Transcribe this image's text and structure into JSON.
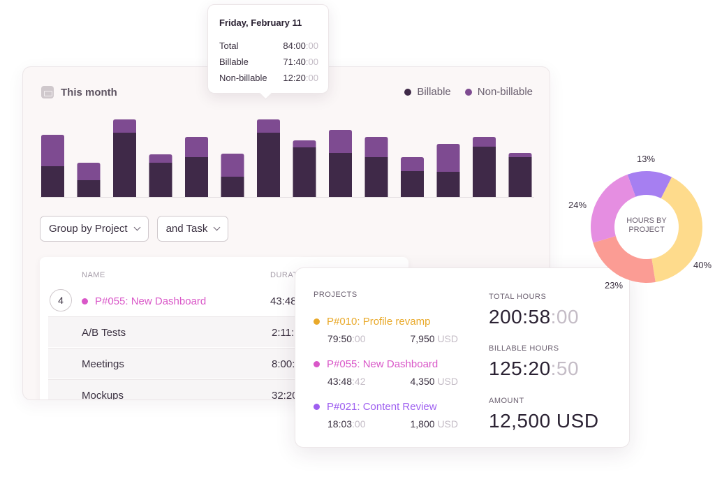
{
  "main_card": {
    "title": "This month",
    "legend": [
      {
        "label": "Billable",
        "color": "#3f2948"
      },
      {
        "label": "Non-billable",
        "color": "#7e4b91"
      }
    ]
  },
  "chart_data": {
    "type": "bar",
    "stacked": true,
    "series": [
      {
        "name": "Billable",
        "color": "#3f2948",
        "values": [
          44,
          24,
          92,
          49,
          57,
          29,
          92,
          71,
          63,
          57,
          37,
          36,
          72,
          57
        ]
      },
      {
        "name": "Non-billable",
        "color": "#7e4b91",
        "values": [
          45,
          25,
          19,
          12,
          29,
          33,
          19,
          10,
          33,
          29,
          20,
          40,
          14,
          6
        ]
      }
    ],
    "ylim": [
      0,
      115
    ],
    "grid": false,
    "legend_position": "top-right"
  },
  "tooltip": {
    "title": "Friday, February 11",
    "rows": [
      {
        "label": "Total",
        "value": "84:00",
        "value_muted": ":00"
      },
      {
        "label": "Billable",
        "value": "71:40",
        "value_muted": ":00"
      },
      {
        "label": "Non-billable",
        "value": "12:20",
        "value_muted": ":00"
      }
    ]
  },
  "filters": {
    "group_by": "Group by Project",
    "and_task": "and Task"
  },
  "table": {
    "headers": {
      "name": "NAME",
      "duration": "DURAT"
    },
    "project": {
      "count": "4",
      "name": "P#055: New Dashboard",
      "color": "#d957c8",
      "duration": "43:48"
    },
    "tasks": [
      {
        "name": "A/B Tests",
        "duration": "2:11:"
      },
      {
        "name": "Meetings",
        "duration": "8:00:"
      },
      {
        "name": "Mockups",
        "duration": "32:20"
      }
    ]
  },
  "summary": {
    "projects_label": "PROJECTS",
    "projects": [
      {
        "name": "P#010: Profile revamp",
        "color": "#e9a92a",
        "duration": "79:50",
        "duration_muted": ":00",
        "amount": "7,950",
        "currency": "USD"
      },
      {
        "name": "P#055: New Dashboard",
        "color": "#d957c8",
        "duration": "43:48",
        "duration_muted": ":42",
        "amount": "4,350",
        "currency": "USD"
      },
      {
        "name": "P#021: Content Review",
        "color": "#9e5ff0",
        "duration": "18:03",
        "duration_muted": ":00",
        "amount": "1,800",
        "currency": "USD"
      }
    ],
    "total_hours_label": "TOTAL HOURS",
    "total_hours": "200:58",
    "total_hours_muted": ":00",
    "billable_hours_label": "BILLABLE HOURS",
    "billable_hours": "125:20",
    "billable_hours_muted": ":50",
    "amount_label": "AMOUNT",
    "amount": "12,500 USD"
  },
  "donut": {
    "center_label_line1": "HOURS BY",
    "center_label_line2": "PROJECT",
    "slices": [
      {
        "label": "13%",
        "value": 13,
        "color": "#a67ff1"
      },
      {
        "label": "40%",
        "value": 40,
        "color": "#fedb8c"
      },
      {
        "label": "23%",
        "value": 23,
        "color": "#fb9c94"
      },
      {
        "label": "24%",
        "value": 24,
        "color": "#e58ee1"
      }
    ]
  }
}
